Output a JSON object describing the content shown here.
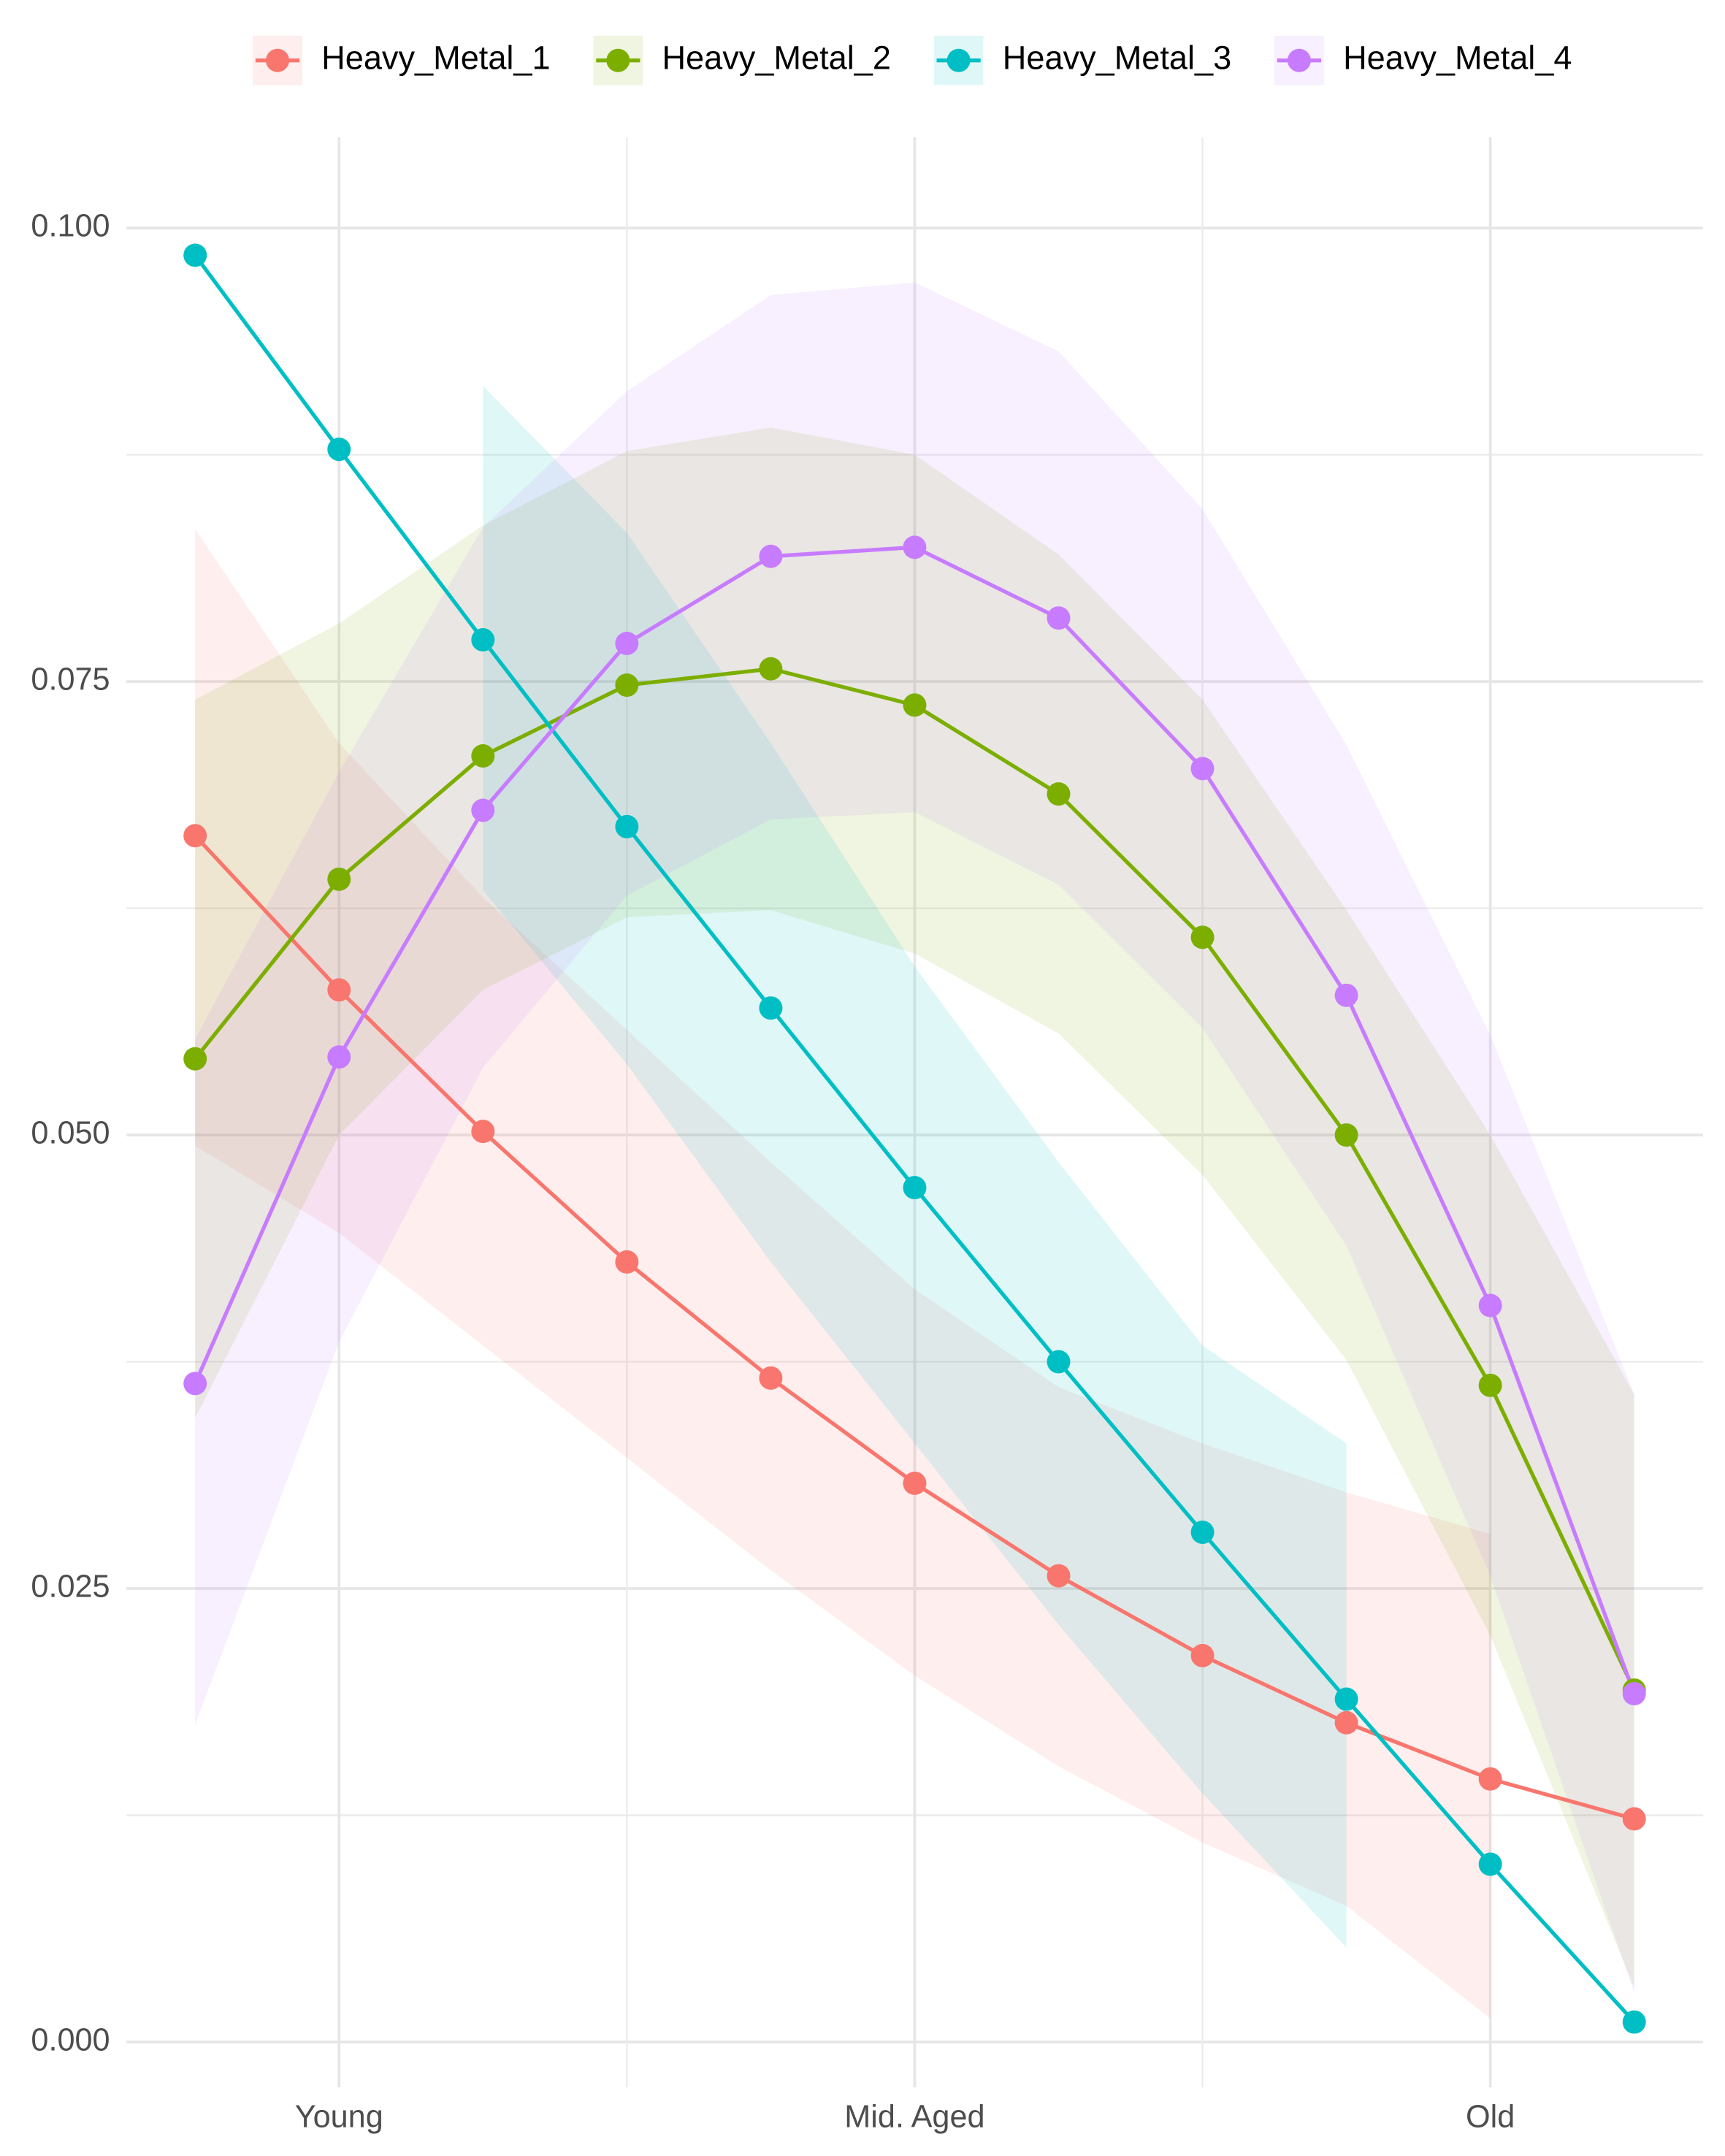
{
  "chart_data": {
    "type": "line",
    "categories": [
      null,
      "Young",
      null,
      null,
      null,
      "Mid. Aged",
      null,
      null,
      null,
      "Old",
      null
    ],
    "ylim": [
      -0.0025,
      0.105
    ],
    "yticks": [
      {
        "value": 0,
        "label": "0.000"
      },
      {
        "value": 0.025,
        "label": "0.025"
      },
      {
        "value": 0.05,
        "label": "0.050"
      },
      {
        "value": 0.075,
        "label": "0.075"
      },
      {
        "value": 0.1,
        "label": "0.100"
      }
    ],
    "grid": true,
    "legend": "top",
    "series": [
      {
        "name": "Heavy_Metal_1",
        "color": "#F8766D",
        "values": [
          0.0665,
          0.058,
          0.0502,
          0.043,
          0.0366,
          0.0308,
          0.0257,
          0.0213,
          0.0176,
          0.0145,
          0.0123
        ],
        "upper": [
          0.0834,
          0.0716,
          0.0631,
          0.0558,
          0.0485,
          0.0415,
          0.0361,
          0.033,
          0.0303,
          0.028,
          null
        ],
        "lower": [
          0.0494,
          0.0446,
          0.0384,
          0.0322,
          0.026,
          0.0202,
          0.0152,
          0.011,
          0.0075,
          0.0013,
          null
        ]
      },
      {
        "name": "Heavy_Metal_2",
        "color": "#7CAE00",
        "values": [
          0.0542,
          0.0641,
          0.0709,
          0.0748,
          0.0757,
          0.0737,
          0.0688,
          0.0609,
          0.05,
          0.0362,
          0.0194
        ],
        "upper": [
          0.074,
          0.0782,
          0.0836,
          0.0877,
          0.089,
          0.0875,
          0.082,
          0.074,
          0.0624,
          0.05,
          0.0357
        ],
        "lower": [
          0.0344,
          0.05,
          0.058,
          0.062,
          0.0624,
          0.06,
          0.0556,
          0.0478,
          0.0376,
          0.0224,
          0.003
        ]
      },
      {
        "name": "Heavy_Metal_3",
        "color": "#00BFC4",
        "values": [
          0.0985,
          0.0878,
          0.0773,
          0.067,
          0.057,
          0.0471,
          0.0375,
          0.0281,
          0.0189,
          0.0098,
          0.0011
        ],
        "upper": [
          null,
          null,
          0.0913,
          0.0832,
          0.0716,
          0.0593,
          0.0485,
          0.0384,
          0.033,
          null,
          null
        ],
        "lower": [
          null,
          null,
          0.0635,
          0.0539,
          0.043,
          0.033,
          0.023,
          0.0137,
          0.0052,
          null,
          null
        ]
      },
      {
        "name": "Heavy_Metal_4",
        "color": "#C77CFF",
        "values": [
          0.0363,
          0.0543,
          0.0679,
          0.0771,
          0.0819,
          0.0824,
          0.0785,
          0.0702,
          0.0577,
          0.0406,
          0.0192
        ],
        "upper": [
          0.0553,
          0.07,
          0.0835,
          0.091,
          0.0963,
          0.097,
          0.0932,
          0.0845,
          0.0715,
          0.0555,
          0.0357
        ],
        "lower": [
          0.0175,
          0.0386,
          0.0537,
          0.0632,
          0.0674,
          0.0678,
          0.0638,
          0.0559,
          0.0439,
          0.0257,
          0.0027
        ]
      }
    ]
  }
}
